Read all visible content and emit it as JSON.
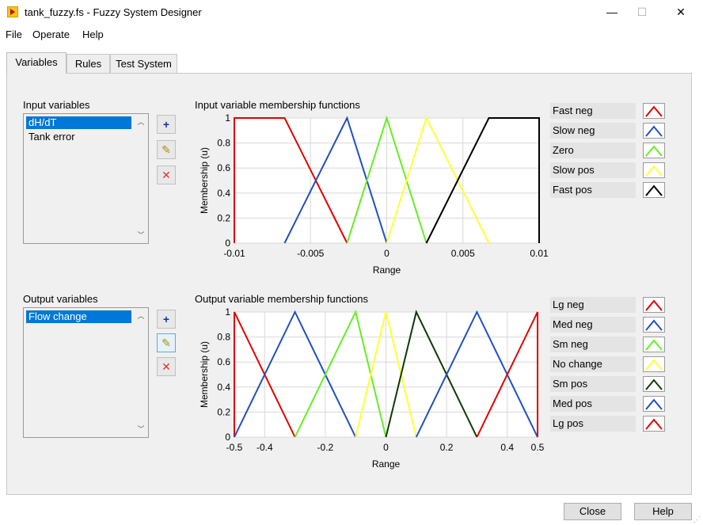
{
  "window": {
    "title": "tank_fuzzy.fs - Fuzzy System Designer",
    "minimize": "—",
    "maximize": "☐",
    "close": "✕"
  },
  "menu": [
    "File",
    "Operate",
    "Help"
  ],
  "tabs": [
    {
      "label": "Variables",
      "active": true
    },
    {
      "label": "Rules",
      "active": false
    },
    {
      "label": "Test System",
      "active": false
    }
  ],
  "input_section": {
    "label": "Input variables",
    "items": [
      {
        "label": "dH/dT",
        "selected": true
      },
      {
        "label": "Tank  error",
        "selected": false
      }
    ],
    "chart_title": "Input variable membership functions"
  },
  "output_section": {
    "label": "Output variables",
    "items": [
      {
        "label": "Flow change",
        "selected": true
      }
    ],
    "chart_title": "Output variable membership functions"
  },
  "buttons": {
    "add": "+",
    "edit": "✎",
    "delete": "✕",
    "close": "Close",
    "help": "Help"
  },
  "chart_data": [
    {
      "type": "line",
      "title": "Input variable membership functions",
      "xlabel": "Range",
      "ylabel": "Membership (u)",
      "xlim": [
        -0.01,
        0.01
      ],
      "ylim": [
        0,
        1
      ],
      "x_ticks": [
        "-0.01",
        "-0.005",
        "0",
        "0.005",
        "0.01"
      ],
      "y_ticks": [
        "0",
        "0.2",
        "0.4",
        "0.6",
        "0.8",
        "1"
      ],
      "grid": true,
      "legend_position": "right",
      "series": [
        {
          "name": "Fast neg",
          "color": "#e00000",
          "points": [
            [
              -0.01,
              0
            ],
            [
              -0.01,
              1
            ],
            [
              -0.0067,
              1
            ],
            [
              -0.0026,
              0
            ]
          ]
        },
        {
          "name": "Slow neg",
          "color": "#1f4fc0",
          "points": [
            [
              -0.0067,
              0
            ],
            [
              -0.0026,
              1
            ],
            [
              0,
              0
            ]
          ]
        },
        {
          "name": "Zero",
          "color": "#66ee22",
          "points": [
            [
              -0.0026,
              0
            ],
            [
              0,
              1
            ],
            [
              0.0026,
              0
            ]
          ]
        },
        {
          "name": "Slow pos",
          "color": "#ffff33",
          "points": [
            [
              0,
              0
            ],
            [
              0.0026,
              1
            ],
            [
              0.0067,
              0
            ]
          ]
        },
        {
          "name": "Fast pos",
          "color": "#000000",
          "points": [
            [
              0.0026,
              0
            ],
            [
              0.0067,
              1
            ],
            [
              0.01,
              1
            ],
            [
              0.01,
              0
            ]
          ]
        }
      ]
    },
    {
      "type": "line",
      "title": "Output variable membership functions",
      "xlabel": "Range",
      "ylabel": "Membership (u)",
      "xlim": [
        -0.5,
        0.5
      ],
      "ylim": [
        0,
        1
      ],
      "x_ticks": [
        "-0.5",
        "-0.4",
        "-0.2",
        "0",
        "0.2",
        "0.4",
        "0.5"
      ],
      "y_ticks": [
        "0",
        "0.2",
        "0.4",
        "0.6",
        "0.8",
        "1"
      ],
      "grid": true,
      "legend_position": "right",
      "series": [
        {
          "name": "Lg neg",
          "color": "#e00000",
          "points": [
            [
              -0.5,
              0
            ],
            [
              -0.5,
              1
            ],
            [
              -0.3,
              0
            ]
          ]
        },
        {
          "name": "Med neg",
          "color": "#1f4fc0",
          "points": [
            [
              -0.5,
              0
            ],
            [
              -0.3,
              1
            ],
            [
              -0.1,
              0
            ]
          ]
        },
        {
          "name": "Sm neg",
          "color": "#66ee22",
          "points": [
            [
              -0.3,
              0
            ],
            [
              -0.1,
              1
            ],
            [
              0,
              0
            ]
          ]
        },
        {
          "name": "No change",
          "color": "#ffff33",
          "points": [
            [
              -0.1,
              0
            ],
            [
              0,
              1
            ],
            [
              0.1,
              0
            ]
          ]
        },
        {
          "name": "Sm pos",
          "color": "#0f3a00",
          "points": [
            [
              0,
              0
            ],
            [
              0.1,
              1
            ],
            [
              0.3,
              0
            ]
          ]
        },
        {
          "name": "Med pos",
          "color": "#1f4fc0",
          "points": [
            [
              0.1,
              0
            ],
            [
              0.3,
              1
            ],
            [
              0.5,
              0
            ]
          ]
        },
        {
          "name": "Lg pos",
          "color": "#e00000",
          "points": [
            [
              0.3,
              0
            ],
            [
              0.5,
              1
            ],
            [
              0.5,
              0
            ]
          ]
        }
      ]
    }
  ]
}
